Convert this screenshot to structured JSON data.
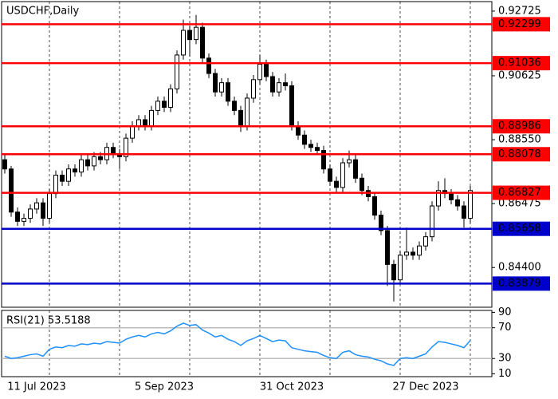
{
  "chart_data": [
    {
      "type": "candlestick",
      "title": "USDCHF,Daily",
      "categories": [
        null,
        null,
        null,
        null,
        null,
        "11 Jul 2023",
        null,
        null,
        null,
        null,
        null,
        null,
        null,
        null,
        null,
        null,
        null,
        null,
        null,
        null,
        null,
        null,
        null,
        null,
        null,
        "5 Sep 2023",
        null,
        null,
        null,
        null,
        null,
        null,
        null,
        null,
        null,
        null,
        null,
        null,
        null,
        null,
        null,
        null,
        null,
        null,
        null,
        "31 Oct 2023",
        null,
        null,
        null,
        null,
        null,
        null,
        null,
        null,
        null,
        null,
        null,
        null,
        null,
        null,
        null,
        null,
        null,
        null,
        null,
        null,
        "27 Dec 2023",
        null,
        null,
        null,
        null,
        null,
        null,
        null
      ],
      "ohlc": [
        [
          0.879,
          0.8805,
          0.8745,
          0.876
        ],
        [
          0.876,
          0.877,
          0.8605,
          0.862
        ],
        [
          0.862,
          0.8635,
          0.8575,
          0.859
        ],
        [
          0.859,
          0.8615,
          0.8575,
          0.86
        ],
        [
          0.86,
          0.8645,
          0.8585,
          0.863
        ],
        [
          0.863,
          0.8665,
          0.8615,
          0.865
        ],
        [
          0.865,
          0.8665,
          0.8575,
          0.86
        ],
        [
          0.86,
          0.8695,
          0.8585,
          0.868
        ],
        [
          0.868,
          0.8755,
          0.8665,
          0.874
        ],
        [
          0.874,
          0.8755,
          0.8705,
          0.872
        ],
        [
          0.872,
          0.8775,
          0.8705,
          0.876
        ],
        [
          0.876,
          0.8775,
          0.8735,
          0.875
        ],
        [
          0.875,
          0.8805,
          0.8735,
          0.879
        ],
        [
          0.879,
          0.8805,
          0.8755,
          0.877
        ],
        [
          0.877,
          0.8815,
          0.8755,
          0.88
        ],
        [
          0.88,
          0.8815,
          0.8775,
          0.879
        ],
        [
          0.879,
          0.8845,
          0.8775,
          0.883
        ],
        [
          0.883,
          0.8845,
          0.8795,
          0.881
        ],
        [
          0.881,
          0.8825,
          0.876,
          0.88
        ],
        [
          0.88,
          0.8875,
          0.8785,
          0.886
        ],
        [
          0.886,
          0.8915,
          0.8845,
          0.89
        ],
        [
          0.89,
          0.8935,
          0.8885,
          0.892
        ],
        [
          0.892,
          0.8935,
          0.8885,
          0.89
        ],
        [
          0.89,
          0.8965,
          0.8885,
          0.895
        ],
        [
          0.895,
          0.8995,
          0.8935,
          0.898
        ],
        [
          0.898,
          0.8995,
          0.8945,
          0.896
        ],
        [
          0.896,
          0.9035,
          0.8945,
          0.902
        ],
        [
          0.902,
          0.9145,
          0.9005,
          0.913
        ],
        [
          0.913,
          0.9245,
          0.9115,
          0.921
        ],
        [
          0.921,
          0.9225,
          0.9125,
          0.918
        ],
        [
          0.918,
          0.926,
          0.9165,
          0.922
        ],
        [
          0.922,
          0.9235,
          0.9105,
          0.912
        ],
        [
          0.912,
          0.9135,
          0.9055,
          0.907
        ],
        [
          0.907,
          0.9085,
          0.8995,
          0.901
        ],
        [
          0.901,
          0.9055,
          0.8995,
          0.904
        ],
        [
          0.904,
          0.9055,
          0.8965,
          0.898
        ],
        [
          0.898,
          0.8995,
          0.8935,
          0.895
        ],
        [
          0.895,
          0.8965,
          0.888,
          0.89
        ],
        [
          0.89,
          0.9005,
          0.8885,
          0.899
        ],
        [
          0.899,
          0.9065,
          0.8975,
          0.905
        ],
        [
          0.905,
          0.913,
          0.9035,
          0.91
        ],
        [
          0.91,
          0.9115,
          0.9045,
          0.906
        ],
        [
          0.906,
          0.9075,
          0.8995,
          0.901
        ],
        [
          0.901,
          0.9055,
          0.8995,
          0.904
        ],
        [
          0.904,
          0.907,
          0.9015,
          0.903
        ],
        [
          0.903,
          0.9045,
          0.8885,
          0.89
        ],
        [
          0.89,
          0.8915,
          0.8855,
          0.887
        ],
        [
          0.887,
          0.8885,
          0.8825,
          0.884
        ],
        [
          0.884,
          0.8855,
          0.8815,
          0.883
        ],
        [
          0.883,
          0.8845,
          0.8805,
          0.882
        ],
        [
          0.882,
          0.8835,
          0.8745,
          0.876
        ],
        [
          0.876,
          0.8775,
          0.8705,
          0.872
        ],
        [
          0.872,
          0.8735,
          0.8685,
          0.87
        ],
        [
          0.87,
          0.8795,
          0.8685,
          0.878
        ],
        [
          0.878,
          0.882,
          0.8765,
          0.879
        ],
        [
          0.879,
          0.8805,
          0.8715,
          0.873
        ],
        [
          0.873,
          0.8745,
          0.8675,
          0.869
        ],
        [
          0.869,
          0.8705,
          0.8655,
          0.867
        ],
        [
          0.867,
          0.8685,
          0.8595,
          0.861
        ],
        [
          0.861,
          0.8625,
          0.8545,
          0.856
        ],
        [
          0.856,
          0.8575,
          0.838,
          0.845
        ],
        [
          0.845,
          0.8465,
          0.833,
          0.84
        ],
        [
          0.84,
          0.8495,
          0.8385,
          0.848
        ],
        [
          0.848,
          0.857,
          0.8465,
          0.849
        ],
        [
          0.849,
          0.8505,
          0.8465,
          0.848
        ],
        [
          0.848,
          0.8525,
          0.8465,
          0.851
        ],
        [
          0.851,
          0.8555,
          0.8495,
          0.854
        ],
        [
          0.854,
          0.8655,
          0.8525,
          0.864
        ],
        [
          0.864,
          0.872,
          0.8625,
          0.869
        ],
        [
          0.869,
          0.873,
          0.8665,
          0.868
        ],
        [
          0.868,
          0.8695,
          0.8645,
          0.866
        ],
        [
          0.866,
          0.8675,
          0.8625,
          0.864
        ],
        [
          0.864,
          0.8655,
          0.857,
          0.86
        ],
        [
          0.86,
          0.8705,
          0.8585,
          0.869
        ]
      ],
      "ylim": [
        0.83111,
        0.93034
      ],
      "yticks": [
        0.92725,
        0.90625,
        {
          "value": 0.8855,
          "label": "0.88550"
        },
        0.86475,
        {
          "value": 0.844,
          "label": "0.84400"
        }
      ],
      "levels": [
        {
          "value": 0.92299,
          "color": "#ff0000"
        },
        {
          "value": 0.91036,
          "color": "#ff0000"
        },
        {
          "value": 0.88986,
          "color": "#ff0000"
        },
        {
          "value": 0.88078,
          "color": "#ff0000"
        },
        {
          "value": 0.86827,
          "color": "#ff0000"
        },
        {
          "value": 0.85658,
          "color": "#0000cc"
        },
        {
          "value": 0.83879,
          "color": "#0000cc"
        }
      ],
      "grid": true
    },
    {
      "type": "line",
      "title": "RSI(21) 53.5188",
      "color": "#1e90ff",
      "values": [
        33,
        30,
        31,
        33,
        35,
        36,
        33,
        42,
        45,
        44,
        47,
        46,
        49,
        48,
        50,
        49,
        52,
        51,
        50,
        55,
        58,
        60,
        58,
        62,
        64,
        62,
        66,
        72,
        76,
        73,
        74,
        67,
        63,
        58,
        60,
        55,
        52,
        47,
        53,
        56,
        60,
        56,
        52,
        54,
        53,
        44,
        42,
        40,
        39,
        38,
        34,
        31,
        30,
        38,
        40,
        35,
        33,
        32,
        29,
        27,
        23,
        21,
        30,
        31,
        30,
        33,
        36,
        45,
        52,
        51,
        49,
        47,
        44,
        53.5188
      ],
      "ylim": [
        6.4,
        92.5
      ],
      "yticks": [
        10,
        30,
        70,
        90
      ],
      "levels": [
        30,
        70
      ]
    }
  ]
}
